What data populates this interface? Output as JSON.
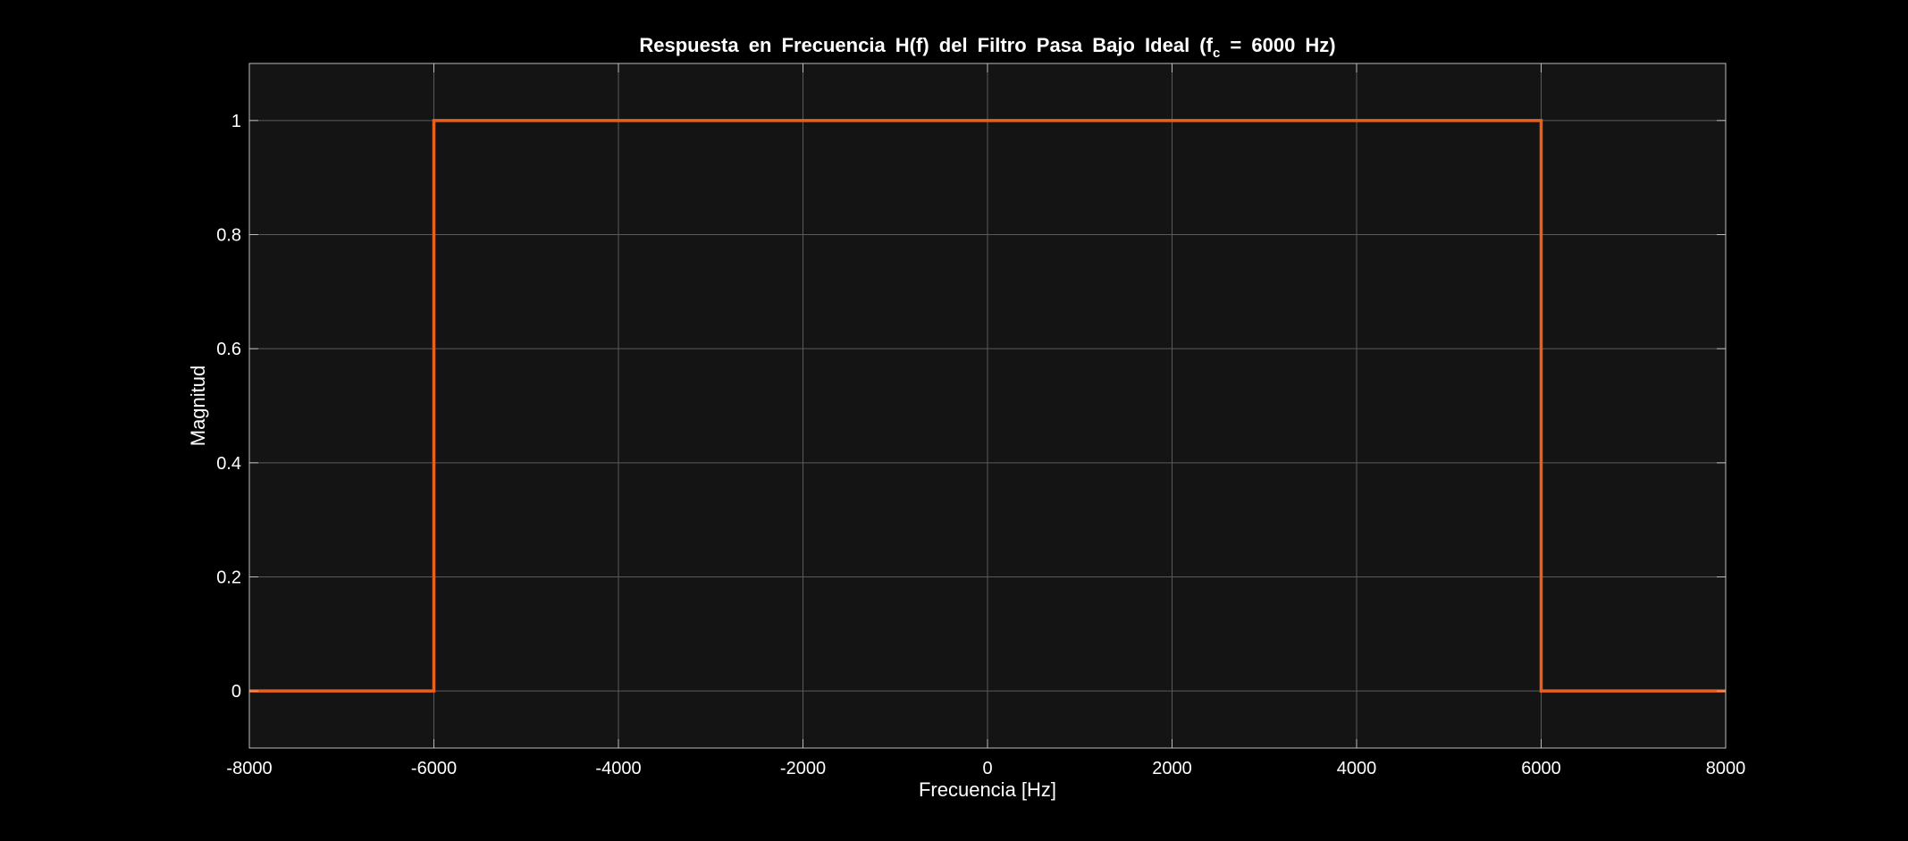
{
  "chart_data": {
    "type": "line",
    "title": {
      "before": "Respuesta en Frecuencia H(f) del Filtro Pasa Bajo Ideal (f",
      "subscript": "c",
      "after": " = 6000 Hz)"
    },
    "xlabel": "Frecuencia [Hz]",
    "ylabel": "Magnitud",
    "xlim": [
      -8000,
      8000
    ],
    "ylim": [
      -0.1,
      1.1
    ],
    "x_ticks": [
      -8000,
      -6000,
      -4000,
      -2000,
      0,
      2000,
      4000,
      6000,
      8000
    ],
    "x_tick_labels": [
      "-8000",
      "-6000",
      "-4000",
      "-2000",
      "0",
      "2000",
      "4000",
      "6000",
      "8000"
    ],
    "y_ticks": [
      0,
      0.2,
      0.4,
      0.6,
      0.8,
      1
    ],
    "y_tick_labels": [
      "0",
      "0.2",
      "0.4",
      "0.6",
      "0.8",
      "1"
    ],
    "grid": true,
    "series": [
      {
        "x": [
          -8000,
          -6000,
          -6000,
          6000,
          6000,
          8000
        ],
        "y": [
          0,
          0,
          1,
          1,
          0,
          0
        ]
      }
    ],
    "colors": {
      "background": "#000000",
      "plot_area": "#141414",
      "grid": "#5a5a5a",
      "axes": "#bdbdbd",
      "line": "#e8601c",
      "text": "#ffffff"
    }
  }
}
